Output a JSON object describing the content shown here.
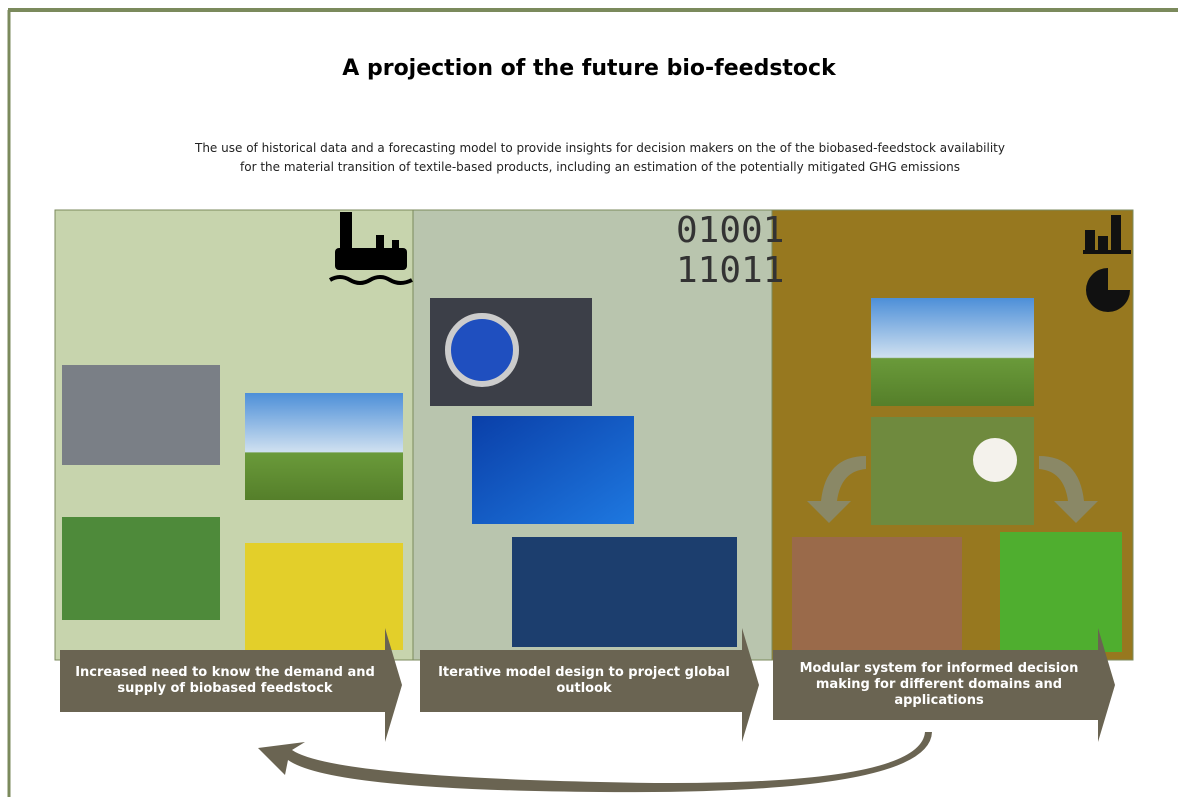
{
  "title": "A projection of the future bio-feedstock",
  "description": "The use of historical data and a forecasting model to provide insights for decision makers on the of the biobased-feedstock availability for the material transition of textile-based products, including an estimation of the potentially mitigated GHG emissions",
  "panels": [
    {
      "label": "Increased need to know the demand and supply of biobased feedstock"
    },
    {
      "label": "Iterative model design to project global outlook",
      "code": [
        "01001",
        "11011"
      ]
    },
    {
      "label": "Modular system for informed decision making for different domains and applications"
    }
  ]
}
